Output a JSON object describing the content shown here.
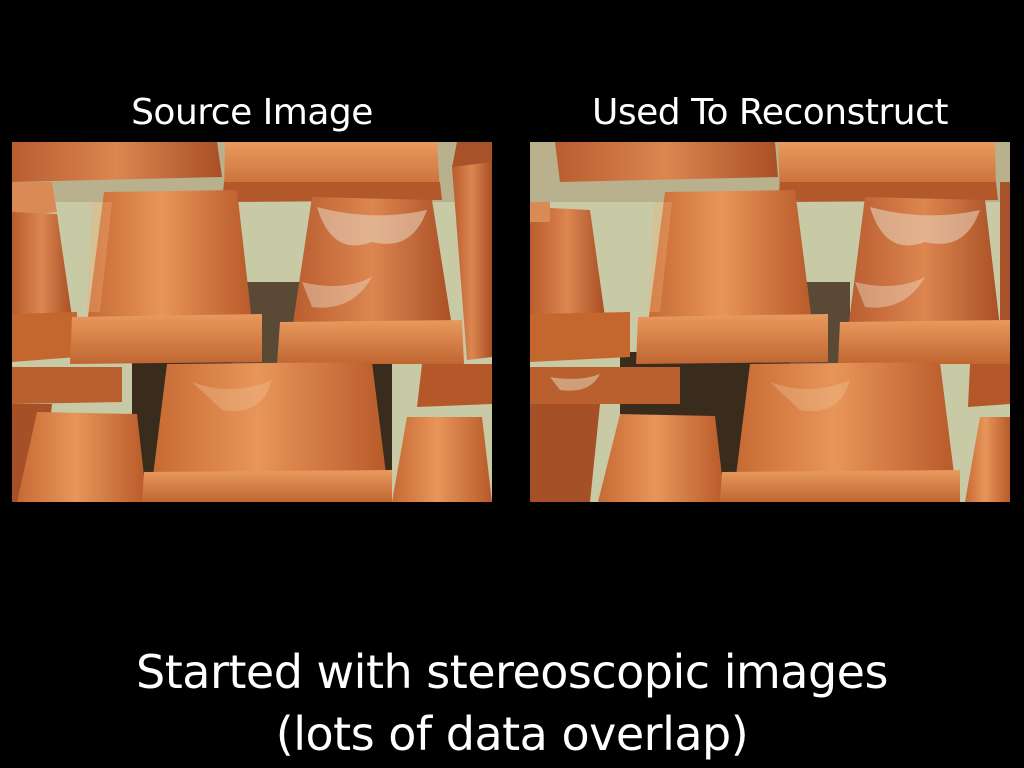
{
  "slide": {
    "background_color": "#000000",
    "text_color": "#ffffff",
    "left_panel": {
      "title": "Source Image"
    },
    "right_panel": {
      "title": "Used To Reconstruct"
    },
    "caption": {
      "line1": "Started with stereoscopic images",
      "line2": "(lots of data overlap)"
    }
  }
}
